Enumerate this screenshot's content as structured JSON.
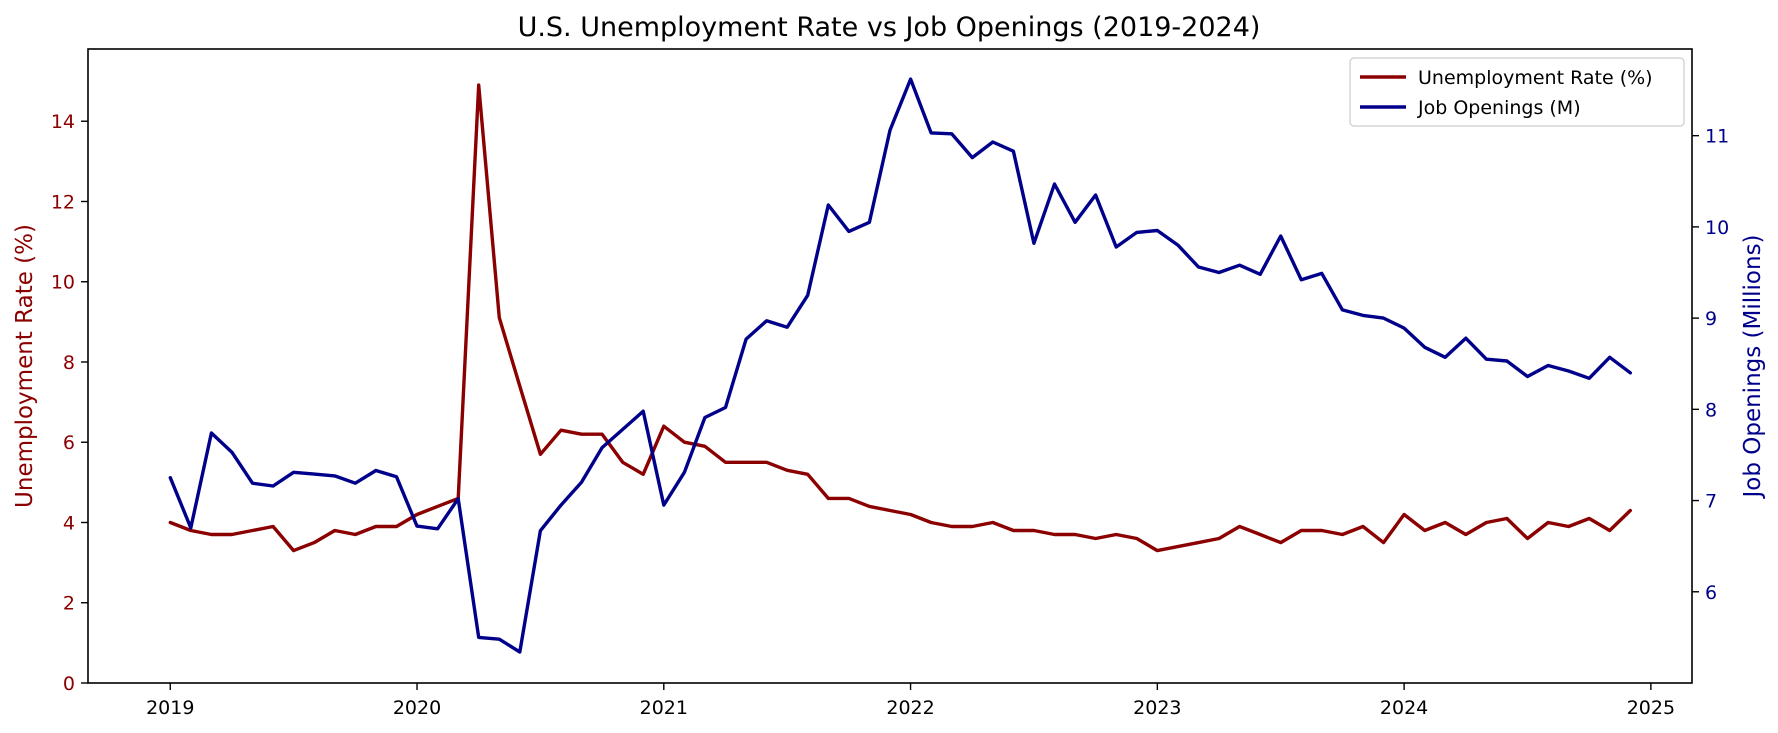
{
  "chart_data": {
    "type": "line",
    "title": "U.S. Unemployment Rate vs Job Openings (2019-2024)",
    "xlabel": "",
    "x_ticks": [
      "2019",
      "2020",
      "2021",
      "2022",
      "2023",
      "2024",
      "2025"
    ],
    "x_range": [
      "2018-09",
      "2025-03"
    ],
    "x": [
      "2019-01",
      "2019-02",
      "2019-03",
      "2019-04",
      "2019-05",
      "2019-06",
      "2019-07",
      "2019-08",
      "2019-09",
      "2019-10",
      "2019-11",
      "2019-12",
      "2020-01",
      "2020-02",
      "2020-03",
      "2020-04",
      "2020-05",
      "2020-06",
      "2020-07",
      "2020-08",
      "2020-09",
      "2020-10",
      "2020-11",
      "2020-12",
      "2021-01",
      "2021-02",
      "2021-03",
      "2021-04",
      "2021-05",
      "2021-06",
      "2021-07",
      "2021-08",
      "2021-09",
      "2021-10",
      "2021-11",
      "2021-12",
      "2022-01",
      "2022-02",
      "2022-03",
      "2022-04",
      "2022-05",
      "2022-06",
      "2022-07",
      "2022-08",
      "2022-09",
      "2022-10",
      "2022-11",
      "2022-12",
      "2023-01",
      "2023-02",
      "2023-03",
      "2023-04",
      "2023-05",
      "2023-06",
      "2023-07",
      "2023-08",
      "2023-09",
      "2023-10",
      "2023-11",
      "2023-12",
      "2024-01",
      "2024-02",
      "2024-03",
      "2024-04",
      "2024-05",
      "2024-06",
      "2024-07",
      "2024-08",
      "2024-09",
      "2024-10",
      "2024-11",
      "2024-12"
    ],
    "y_left": {
      "label": "Unemployment Rate (%)",
      "ticks": [
        "0",
        "2",
        "4",
        "6",
        "8",
        "10",
        "12",
        "14"
      ],
      "ylim": [
        0,
        15.8
      ],
      "color": "#8b0000"
    },
    "y_right": {
      "label": "Job Openings (Millions)",
      "ticks": [
        "6",
        "7",
        "8",
        "9",
        "10",
        "11"
      ],
      "ylim": [
        5.0,
        11.95
      ],
      "color": "#00008b"
    },
    "legend": {
      "position": "top-right",
      "entries": [
        "Unemployment Rate (%)",
        "Job Openings (M)"
      ]
    },
    "grid": false,
    "series": [
      {
        "name": "Unemployment Rate (%)",
        "axis": "left",
        "color": "#8b0000",
        "values": [
          4.0,
          3.8,
          3.7,
          3.7,
          3.8,
          3.9,
          3.3,
          3.5,
          3.8,
          3.7,
          3.9,
          3.9,
          4.2,
          4.4,
          4.6,
          14.9,
          9.1,
          7.4,
          5.7,
          6.3,
          6.2,
          6.2,
          5.5,
          5.2,
          6.4,
          6.0,
          5.9,
          5.5,
          5.5,
          5.5,
          5.3,
          5.2,
          4.6,
          4.6,
          4.4,
          4.3,
          4.2,
          4.0,
          3.9,
          3.9,
          4.0,
          3.8,
          3.8,
          3.7,
          3.7,
          3.6,
          3.7,
          3.6,
          3.3,
          3.4,
          3.5,
          3.6,
          3.9,
          3.7,
          3.5,
          3.8,
          3.8,
          3.7,
          3.9,
          3.5,
          4.2,
          3.8,
          4.0,
          3.7,
          4.0,
          4.1,
          3.6,
          4.0,
          3.9,
          4.1,
          3.8,
          4.3
        ]
      },
      {
        "name": "Job Openings (M)",
        "axis": "right",
        "color": "#00008b",
        "values": [
          7.25,
          6.7,
          7.74,
          7.53,
          7.19,
          7.16,
          7.31,
          7.29,
          7.27,
          7.19,
          7.33,
          7.26,
          6.72,
          6.69,
          7.02,
          5.5,
          5.48,
          5.34,
          6.67,
          6.95,
          7.2,
          7.58,
          7.78,
          7.98,
          6.95,
          7.31,
          7.91,
          8.02,
          8.77,
          8.97,
          8.9,
          9.25,
          10.24,
          9.95,
          10.05,
          11.06,
          11.62,
          11.03,
          11.02,
          10.76,
          10.93,
          10.83,
          9.82,
          10.47,
          10.05,
          10.35,
          9.78,
          9.94,
          9.96,
          9.8,
          9.56,
          9.5,
          9.58,
          9.48,
          9.9,
          9.42,
          9.49,
          9.09,
          9.03,
          9.0,
          8.89,
          8.68,
          8.57,
          8.78,
          8.55,
          8.53,
          8.36,
          8.48,
          8.42,
          8.34,
          8.57,
          8.4
        ]
      }
    ]
  }
}
